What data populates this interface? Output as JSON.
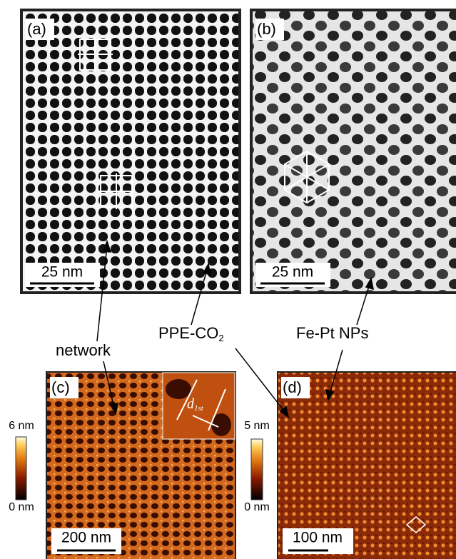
{
  "panels": [
    {
      "label": "(a)",
      "scale_bar": "25 nm"
    },
    {
      "label": "(b)",
      "scale_bar": "25 nm"
    },
    {
      "label": "(c)",
      "scale_bar": "200 nm",
      "colorbar": {
        "top": "6 nm",
        "bottom": "0 nm"
      },
      "inset": {
        "symbol": "d",
        "subscript": "1st"
      }
    },
    {
      "label": "(d)",
      "scale_bar": "100 nm",
      "colorbar": {
        "top": "5 nm",
        "bottom": "0 nm"
      }
    }
  ],
  "annotations": [
    {
      "text": "network"
    },
    {
      "text": "PPE-CO",
      "subscript": "2"
    },
    {
      "text": "Fe-Pt NPs"
    }
  ]
}
